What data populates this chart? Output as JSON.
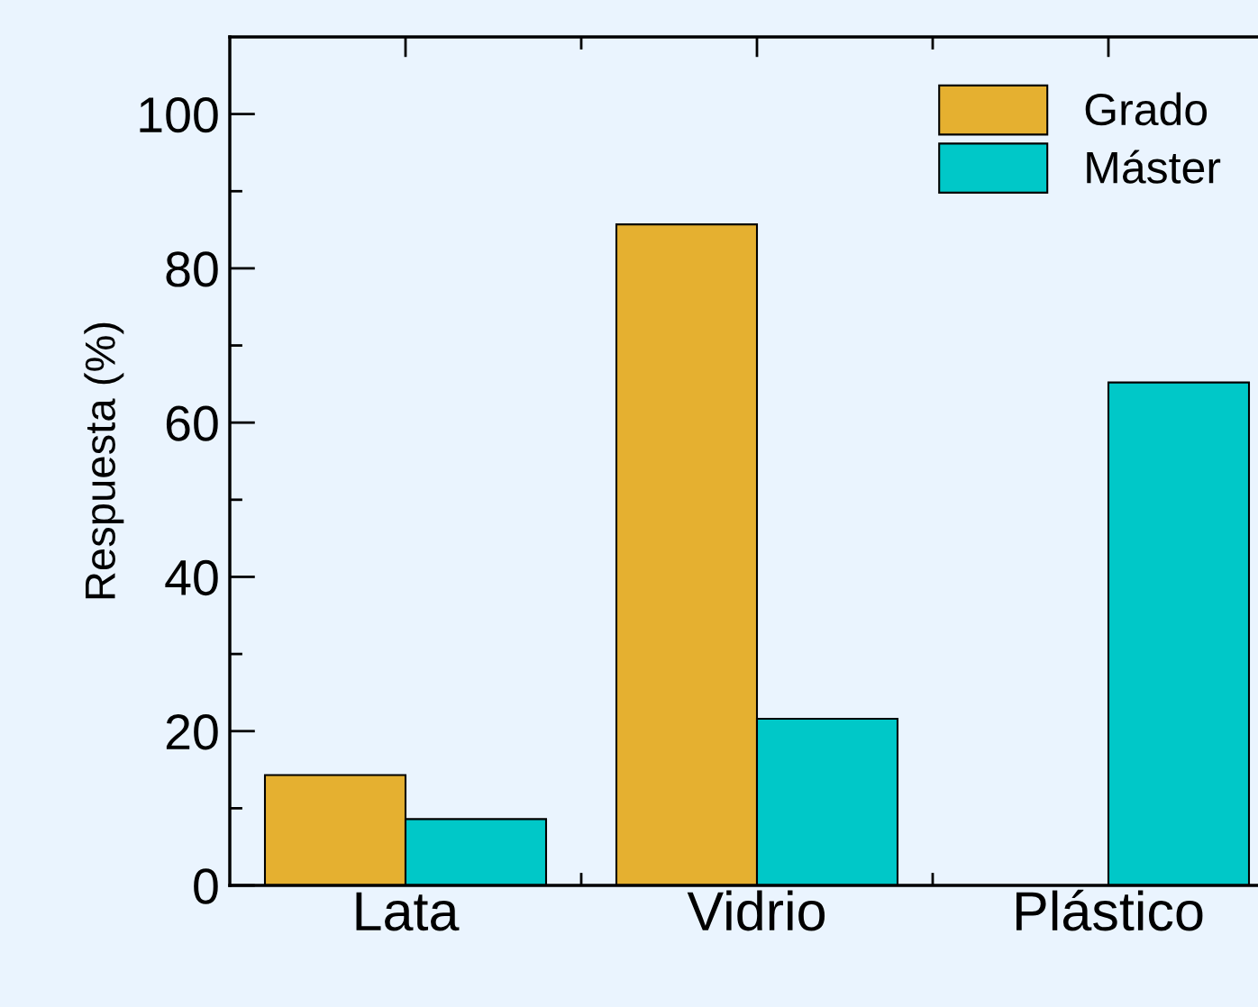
{
  "chart_data": {
    "type": "bar",
    "ylabel": "Respuesta (%)",
    "categories": [
      "Lata",
      "Vidrio",
      "Plástico"
    ],
    "series": [
      {
        "name": "Grado",
        "color": "#e5b030",
        "values": [
          14.3,
          85.7,
          null
        ]
      },
      {
        "name": "Máster",
        "color": "#00c8c8",
        "values": [
          8.6,
          21.6,
          65.2
        ]
      }
    ],
    "ylim": [
      0,
      110
    ],
    "yticks": [
      0,
      {
        "value": 10,
        "label": null
      },
      20,
      {
        "value": 30,
        "label": null
      },
      40,
      {
        "value": 50,
        "label": null
      },
      60,
      {
        "value": 70,
        "label": null
      },
      80,
      {
        "value": 90,
        "label": null
      },
      100
    ],
    "grid": false,
    "legend": "top right"
  }
}
